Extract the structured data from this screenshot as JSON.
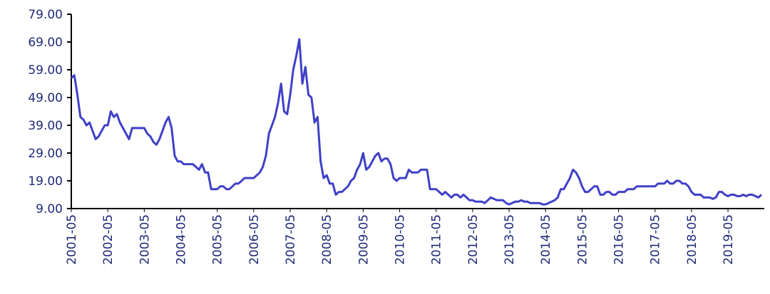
{
  "chart_data": {
    "type": "line",
    "categories": [
      "2001-05",
      null,
      null,
      null,
      null,
      null,
      null,
      null,
      null,
      null,
      null,
      null,
      "2002-05",
      null,
      null,
      null,
      null,
      null,
      null,
      null,
      null,
      null,
      null,
      null,
      "2003-05",
      null,
      null,
      null,
      null,
      null,
      null,
      null,
      null,
      null,
      null,
      null,
      "2004-05",
      null,
      null,
      null,
      null,
      null,
      null,
      null,
      null,
      null,
      null,
      null,
      "2005-05",
      null,
      null,
      null,
      null,
      null,
      null,
      null,
      null,
      null,
      null,
      null,
      "2006-05",
      null,
      null,
      null,
      null,
      null,
      null,
      null,
      null,
      null,
      null,
      null,
      "2007-05",
      null,
      null,
      null,
      null,
      null,
      null,
      null,
      null,
      null,
      null,
      null,
      "2008-05",
      null,
      null,
      null,
      null,
      null,
      null,
      null,
      null,
      null,
      null,
      null,
      "2009-05",
      null,
      null,
      null,
      null,
      null,
      null,
      null,
      null,
      null,
      null,
      null,
      "2010-05",
      null,
      null,
      null,
      null,
      null,
      null,
      null,
      null,
      null,
      null,
      null,
      "2011-05",
      null,
      null,
      null,
      null,
      null,
      null,
      null,
      null,
      null,
      null,
      null,
      "2012-05",
      null,
      null,
      null,
      null,
      null,
      null,
      null,
      null,
      null,
      null,
      null,
      "2013-05",
      null,
      null,
      null,
      null,
      null,
      null,
      null,
      null,
      null,
      null,
      null,
      "2014-05",
      null,
      null,
      null,
      null,
      null,
      null,
      null,
      null,
      null,
      null,
      null,
      "2015-05",
      null,
      null,
      null,
      null,
      null,
      null,
      null,
      null,
      null,
      null,
      null,
      "2016-05",
      null,
      null,
      null,
      null,
      null,
      null,
      null,
      null,
      null,
      null,
      null,
      "2017-05",
      null,
      null,
      null,
      null,
      null,
      null,
      null,
      null,
      null,
      null,
      null,
      "2018-05",
      null,
      null,
      null,
      null,
      null,
      null,
      null,
      null,
      null,
      null,
      null,
      "2019-05",
      null,
      null,
      null,
      null,
      null,
      null,
      null,
      null,
      null,
      null,
      null
    ],
    "series": [
      {
        "color": "#4040c8",
        "values": [
          56,
          57,
          50,
          42,
          41,
          39,
          40,
          37,
          34,
          35,
          37,
          39,
          39,
          44,
          42,
          43,
          40,
          38,
          36,
          34,
          38,
          38,
          38,
          38,
          38,
          36,
          35,
          33,
          32,
          34,
          37,
          40,
          42,
          38,
          28,
          26,
          26,
          25,
          25,
          25,
          25,
          24,
          23,
          25,
          22,
          22,
          16,
          16,
          16,
          17,
          17,
          16,
          16,
          17,
          18,
          18,
          19,
          20,
          20,
          20,
          20,
          21,
          22,
          24,
          28,
          36,
          39,
          42,
          47,
          54,
          44,
          43,
          50,
          59,
          64,
          70,
          54,
          60,
          50,
          49,
          40,
          42,
          26,
          20,
          21,
          18,
          18,
          14,
          15,
          15,
          16,
          17,
          19,
          20,
          23,
          25,
          29,
          23,
          24,
          26,
          28,
          29,
          26,
          27,
          27,
          25,
          20,
          19,
          20,
          20,
          20,
          23,
          22,
          22,
          22,
          23,
          23,
          23,
          16,
          16,
          16,
          15,
          14,
          15,
          14,
          13,
          14,
          14,
          13,
          14,
          13,
          12,
          12,
          11.5,
          11.5,
          11.5,
          11,
          12,
          13,
          12.5,
          12,
          12,
          12,
          11,
          10.5,
          11,
          11.5,
          11.5,
          12,
          11.5,
          11.5,
          11,
          11,
          11,
          11,
          10.5,
          10.5,
          11,
          11.5,
          12,
          13,
          16,
          16,
          18,
          20,
          23,
          22,
          20,
          17,
          15,
          15,
          16,
          17,
          17,
          14,
          14,
          15,
          15,
          14,
          14,
          15,
          15,
          15,
          16,
          16,
          16,
          17,
          17,
          17,
          17,
          17,
          17,
          17,
          18,
          18,
          18,
          19,
          18,
          18,
          19,
          19,
          18,
          18,
          17,
          15,
          14,
          14,
          14,
          13,
          13,
          13,
          12.5,
          13,
          15,
          15,
          14,
          13.5,
          14,
          14,
          13.5,
          13.5,
          14,
          13.5,
          14,
          14,
          13.5,
          13,
          14
        ]
      }
    ],
    "ylim": [
      9,
      79
    ],
    "yticks": [
      {
        "value": 9,
        "label": "9.00"
      },
      {
        "value": 19,
        "label": "19.00"
      },
      {
        "value": 29,
        "label": "29.00"
      },
      {
        "value": 39,
        "label": "39.00"
      },
      {
        "value": 49,
        "label": "49.00"
      },
      {
        "value": 59,
        "label": "59.00"
      },
      {
        "value": 69,
        "label": "69.00"
      },
      {
        "value": 79,
        "label": "79.00"
      }
    ]
  }
}
